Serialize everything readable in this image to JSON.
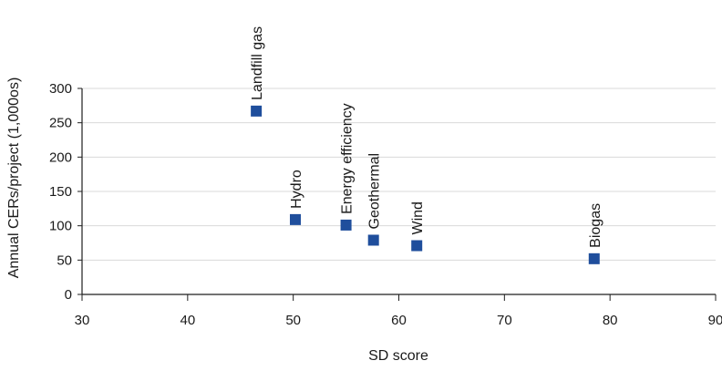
{
  "chart_data": {
    "type": "scatter",
    "title": "",
    "xlabel": "SD score",
    "ylabel": "Annual CERs/project (1,000os)",
    "xlim": [
      30,
      90
    ],
    "ylim": [
      0,
      300
    ],
    "x_ticks": [
      30,
      40,
      50,
      60,
      70,
      80,
      90
    ],
    "y_ticks": [
      0,
      50,
      100,
      150,
      200,
      250,
      300
    ],
    "grid": "horizontal",
    "marker": "square",
    "colors": {
      "marker": "#1f4e9c",
      "axis": "#1f1f1f",
      "grid": "#d9d9d9"
    },
    "points": [
      {
        "label": "Landfill gas",
        "x": 46.5,
        "y": 267
      },
      {
        "label": "Hydro",
        "x": 50.2,
        "y": 109
      },
      {
        "label": "Energy efficiency",
        "x": 55,
        "y": 101
      },
      {
        "label": "Geothermal",
        "x": 57.6,
        "y": 79
      },
      {
        "label": "Wind",
        "x": 61.7,
        "y": 71
      },
      {
        "label": "Biogas",
        "x": 78.5,
        "y": 52
      }
    ]
  }
}
